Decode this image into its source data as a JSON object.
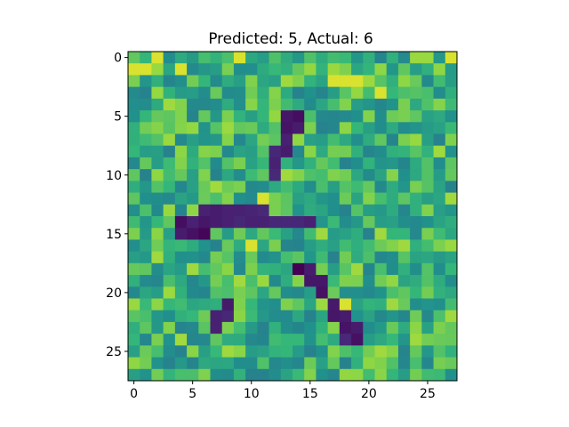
{
  "chart_data": {
    "type": "heatmap",
    "title": "Predicted: 5, Actual: 6",
    "colormap": "viridis",
    "rows": 28,
    "cols": 28,
    "x_ticks": [
      0,
      5,
      10,
      15,
      20,
      25
    ],
    "y_ticks": [
      0,
      5,
      10,
      15,
      20,
      25
    ],
    "xlim": [
      -0.5,
      27.5
    ],
    "ylim": [
      27.5,
      -0.5
    ],
    "background_range": [
      0.55,
      0.9
    ],
    "seed": 1337,
    "bright_cells": [
      [
        1,
        0
      ],
      [
        1,
        1
      ],
      [
        0,
        2
      ],
      [
        1,
        4
      ],
      [
        0,
        9
      ],
      [
        2,
        17
      ],
      [
        2,
        18
      ],
      [
        2,
        19
      ],
      [
        3,
        21
      ],
      [
        0,
        27
      ],
      [
        16,
        10
      ],
      [
        12,
        11
      ],
      [
        21,
        18
      ]
    ],
    "stroke_cells": [
      [
        5,
        13,
        0.08
      ],
      [
        5,
        14,
        0.05
      ],
      [
        6,
        13,
        0.07
      ],
      [
        6,
        14,
        0.1
      ],
      [
        7,
        13,
        0.12
      ],
      [
        8,
        12,
        0.14
      ],
      [
        8,
        13,
        0.1
      ],
      [
        9,
        12,
        0.12
      ],
      [
        10,
        12,
        0.15
      ],
      [
        13,
        6,
        0.12
      ],
      [
        13,
        7,
        0.1
      ],
      [
        13,
        8,
        0.12
      ],
      [
        13,
        9,
        0.12
      ],
      [
        13,
        10,
        0.13
      ],
      [
        13,
        11,
        0.15
      ],
      [
        14,
        4,
        0.05
      ],
      [
        14,
        5,
        0.12
      ],
      [
        14,
        6,
        0.08
      ],
      [
        14,
        7,
        0.1
      ],
      [
        14,
        8,
        0.12
      ],
      [
        14,
        9,
        0.14
      ],
      [
        14,
        10,
        0.12
      ],
      [
        14,
        11,
        0.12
      ],
      [
        14,
        12,
        0.14
      ],
      [
        14,
        13,
        0.14
      ],
      [
        14,
        14,
        0.14
      ],
      [
        14,
        15,
        0.12
      ],
      [
        15,
        4,
        0.1
      ],
      [
        15,
        5,
        0.06
      ],
      [
        15,
        6,
        0.02
      ],
      [
        18,
        14,
        0.0
      ],
      [
        18,
        15,
        0.1
      ],
      [
        19,
        15,
        0.08
      ],
      [
        19,
        16,
        0.08
      ],
      [
        20,
        16,
        0.06
      ],
      [
        21,
        17,
        0.09
      ],
      [
        21,
        8,
        0.09
      ],
      [
        22,
        7,
        0.12
      ],
      [
        22,
        8,
        0.14
      ],
      [
        23,
        7,
        0.12
      ],
      [
        22,
        17,
        0.08
      ],
      [
        22,
        18,
        0.1
      ],
      [
        23,
        18,
        0.07
      ],
      [
        23,
        19,
        0.1
      ],
      [
        24,
        18,
        0.15
      ],
      [
        24,
        19,
        0.06
      ]
    ]
  }
}
